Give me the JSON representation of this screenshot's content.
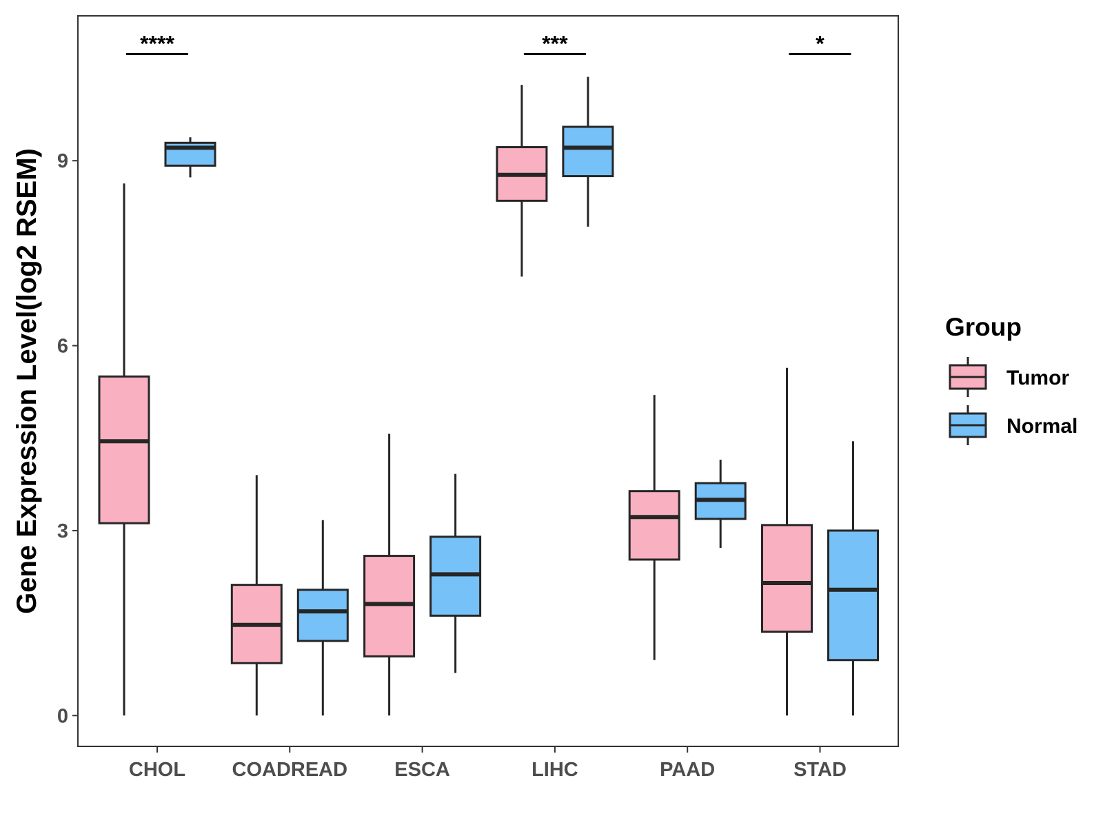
{
  "chart_data": {
    "type": "boxplot",
    "title": "",
    "xlabel": "",
    "ylabel": "Gene Expression Level(log2 RSEM)",
    "ylim": [
      -0.5,
      11.35
    ],
    "yticks": [
      0,
      3,
      6,
      9
    ],
    "ytick_labels": [
      "0",
      "3",
      "6",
      "9"
    ],
    "grid": false,
    "legend": {
      "title": "Group",
      "position": "right",
      "entries": [
        {
          "name": "Tumor",
          "color": "#F9B0C1"
        },
        {
          "name": "Normal",
          "color": "#76C1F8"
        }
      ]
    },
    "categories": [
      "CHOL",
      "COADREAD",
      "ESCA",
      "LIHC",
      "PAAD",
      "STAD"
    ],
    "series": [
      {
        "name": "Tumor",
        "color": "#F9B0C1",
        "boxes": [
          {
            "min": 0.0,
            "q1": 3.12,
            "median": 4.45,
            "q3": 5.5,
            "max": 8.63
          },
          {
            "min": 0.0,
            "q1": 0.85,
            "median": 1.47,
            "q3": 2.12,
            "max": 3.9
          },
          {
            "min": 0.0,
            "q1": 0.96,
            "median": 1.81,
            "q3": 2.59,
            "max": 4.57
          },
          {
            "min": 7.12,
            "q1": 8.35,
            "median": 8.77,
            "q3": 9.22,
            "max": 10.23
          },
          {
            "min": 0.9,
            "q1": 2.53,
            "median": 3.22,
            "q3": 3.64,
            "max": 5.2
          },
          {
            "min": 0.0,
            "q1": 1.36,
            "median": 2.15,
            "q3": 3.09,
            "max": 5.64
          }
        ]
      },
      {
        "name": "Normal",
        "color": "#76C1F8",
        "boxes": [
          {
            "min": 8.73,
            "q1": 8.92,
            "median": 9.21,
            "q3": 9.29,
            "max": 9.38
          },
          {
            "min": 0.0,
            "q1": 1.21,
            "median": 1.69,
            "q3": 2.04,
            "max": 3.17
          },
          {
            "min": 0.69,
            "q1": 1.62,
            "median": 2.29,
            "q3": 2.9,
            "max": 3.92
          },
          {
            "min": 7.93,
            "q1": 8.75,
            "median": 9.21,
            "q3": 9.55,
            "max": 10.36
          },
          {
            "min": 2.72,
            "q1": 3.19,
            "median": 3.5,
            "q3": 3.77,
            "max": 4.15
          },
          {
            "min": 0.0,
            "q1": 0.9,
            "median": 2.04,
            "q3": 3.0,
            "max": 4.45
          }
        ]
      }
    ],
    "annotations": [
      {
        "category": "CHOL",
        "text": "****",
        "y": 10.73
      },
      {
        "category": "LIHC",
        "text": "***",
        "y": 10.73
      },
      {
        "category": "STAD",
        "text": "*",
        "y": 10.73
      }
    ]
  }
}
